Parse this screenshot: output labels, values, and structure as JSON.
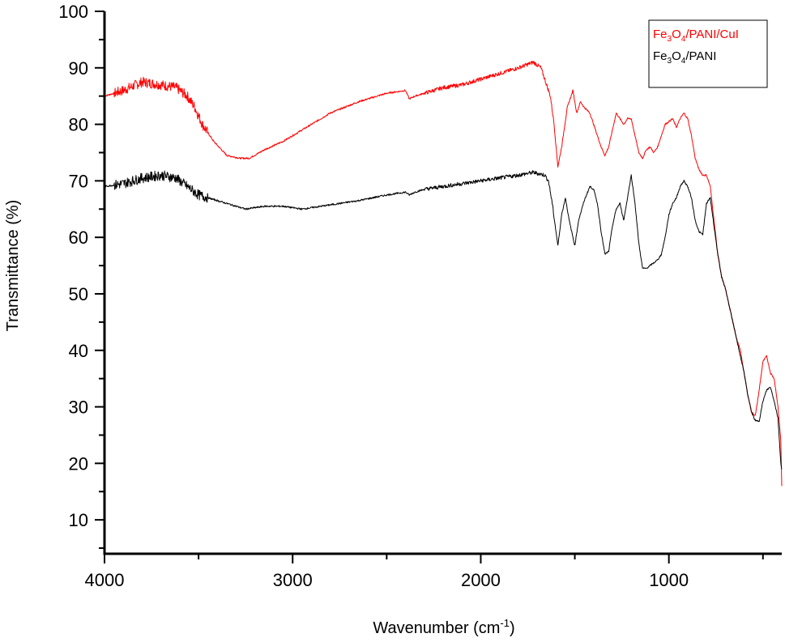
{
  "chart_data": {
    "type": "line",
    "xlabel": "Wavenumber (cm",
    "xlabel_sup": "-1",
    "xlabel_end": ")",
    "ylabel": "Transmittance (%)",
    "xlim": [
      4000,
      400
    ],
    "ylim": [
      4,
      100
    ],
    "x_ticks": [
      4000,
      3000,
      2000,
      1000
    ],
    "y_ticks": [
      10,
      20,
      30,
      40,
      50,
      60,
      70,
      80,
      90,
      100
    ],
    "grid": false,
    "legend_position": "top-right",
    "series": [
      {
        "name": "Fe3O4/PANI/CuI",
        "legend_parts": [
          "Fe",
          "3",
          "O",
          "4",
          "/PANI/CuI"
        ],
        "color": "#ff0000",
        "x": [
          4000,
          3900,
          3800,
          3700,
          3620,
          3560,
          3520,
          3480,
          3420,
          3350,
          3280,
          3230,
          3150,
          3050,
          2950,
          2800,
          2650,
          2500,
          2400,
          2380,
          2350,
          2300,
          2200,
          2100,
          2000,
          1900,
          1800,
          1720,
          1680,
          1650,
          1630,
          1610,
          1590,
          1570,
          1540,
          1510,
          1490,
          1470,
          1450,
          1420,
          1400,
          1380,
          1360,
          1340,
          1320,
          1300,
          1280,
          1260,
          1240,
          1220,
          1200,
          1180,
          1160,
          1140,
          1120,
          1100,
          1080,
          1060,
          1040,
          1020,
          1000,
          980,
          960,
          940,
          920,
          900,
          880,
          860,
          840,
          820,
          800,
          780,
          760,
          740,
          720,
          700,
          680,
          660,
          640,
          620,
          600,
          580,
          560,
          540,
          520,
          500,
          480,
          460,
          440,
          420,
          405,
          400
        ],
        "y": [
          85,
          86,
          87.5,
          87,
          86.5,
          85,
          83,
          80,
          77,
          74.5,
          74,
          74,
          75.5,
          77,
          79,
          82,
          84,
          85.5,
          86,
          84.5,
          85,
          85.5,
          86.5,
          87,
          88,
          89,
          90,
          91,
          90,
          87,
          85,
          80,
          72.5,
          76,
          83,
          86,
          82,
          84,
          83,
          82,
          80,
          78,
          76,
          74.5,
          76,
          79,
          82,
          81,
          80,
          81,
          81,
          78,
          75,
          74,
          75.5,
          76,
          75,
          76,
          78,
          80,
          80.5,
          81,
          79.5,
          81,
          82,
          81,
          78,
          74,
          72,
          71,
          71,
          69,
          63,
          57,
          53,
          51,
          48,
          45,
          42,
          40,
          36,
          32,
          29,
          28.5,
          33,
          38,
          39,
          36,
          35,
          30,
          24,
          16
        ]
      },
      {
        "name": "Fe3O4/PANI",
        "legend_parts": [
          "Fe",
          "3",
          "O",
          "4",
          "/PANI"
        ],
        "color": "#000000",
        "x": [
          4000,
          3900,
          3800,
          3700,
          3620,
          3560,
          3500,
          3400,
          3300,
          3250,
          3150,
          3050,
          2950,
          2850,
          2750,
          2650,
          2500,
          2400,
          2380,
          2350,
          2300,
          2200,
          2100,
          2000,
          1900,
          1800,
          1720,
          1660,
          1640,
          1620,
          1600,
          1590,
          1570,
          1550,
          1530,
          1500,
          1480,
          1450,
          1420,
          1400,
          1380,
          1360,
          1340,
          1320,
          1300,
          1280,
          1260,
          1240,
          1220,
          1200,
          1180,
          1160,
          1140,
          1120,
          1100,
          1080,
          1060,
          1040,
          1020,
          1000,
          980,
          960,
          940,
          920,
          900,
          880,
          860,
          840,
          820,
          800,
          780,
          760,
          740,
          720,
          700,
          680,
          660,
          640,
          620,
          600,
          580,
          560,
          540,
          520,
          500,
          480,
          460,
          440,
          420,
          405,
          400
        ],
        "y": [
          69,
          69.5,
          70.5,
          71,
          70.5,
          69,
          67.5,
          66.5,
          65.5,
          65,
          65.5,
          65.5,
          65,
          65.5,
          66,
          66.5,
          67.5,
          68,
          67.5,
          68,
          68.5,
          69,
          69.5,
          70,
          70.5,
          71,
          71.5,
          71,
          70,
          66,
          61,
          58.5,
          64,
          67,
          63,
          58.5,
          63,
          66.5,
          69,
          68.5,
          66,
          61,
          57,
          57.5,
          62,
          65,
          66,
          63,
          67,
          71,
          66,
          59,
          54.5,
          54.5,
          55,
          55.5,
          56,
          57,
          60,
          64,
          66,
          67,
          69,
          70,
          69,
          67,
          63,
          61,
          60.5,
          66,
          67,
          62,
          57,
          53,
          51,
          48,
          45,
          42,
          39,
          36,
          32,
          29,
          27.5,
          27.5,
          31,
          33,
          33.5,
          31,
          28,
          20,
          19
        ]
      }
    ]
  }
}
